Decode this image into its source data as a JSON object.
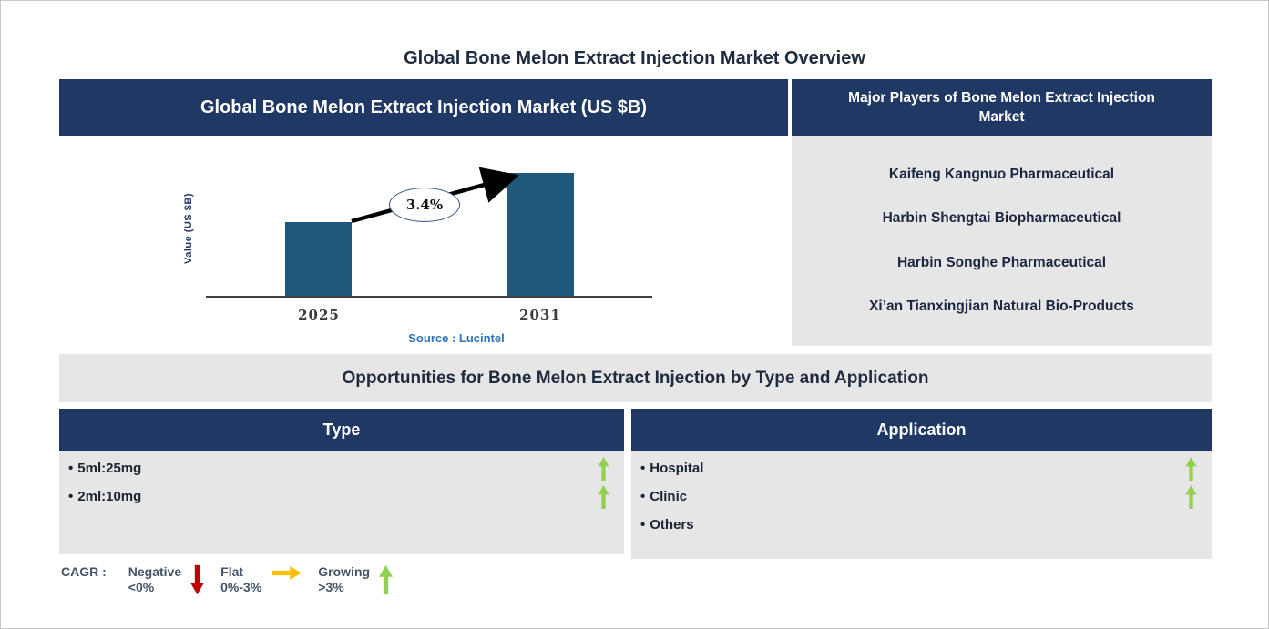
{
  "page": {
    "title": "Global Bone Melon Extract Injection Market Overview"
  },
  "chart_data": {
    "type": "bar",
    "title": "Global Bone Melon Extract Injection Market (US $B)",
    "categories": [
      "2025",
      "2031"
    ],
    "values": [
      0.6,
      1.0
    ],
    "value_note": "Y-axis has no tick labels; values are relative bar heights (2031 normalized to 1.0)",
    "ylabel": "Value (US $B)",
    "xlabel": "",
    "ylim": [
      0,
      1.1
    ],
    "grid": false,
    "legend": "none",
    "annotations": [
      {
        "label": "3.4%",
        "note": "CAGR shown in ellipse on growth arrow from 2025 bar to 2031 bar"
      }
    ],
    "source": "Source : Lucintel"
  },
  "players_panel": {
    "header": "Major Players of Bone Melon Extract Injection Market",
    "players": [
      "Kaifeng Kangnuo Pharmaceutical",
      "Harbin Shengtai Biopharmaceutical",
      "Harbin Songhe Pharmaceutical",
      "Xi’an Tianxingjian Natural Bio-Products"
    ]
  },
  "opportunities": {
    "banner": "Opportunities for Bone Melon Extract Injection by Type and Application",
    "type_column": {
      "header": "Type",
      "items": [
        {
          "label": "5ml:25mg",
          "trend": "growing"
        },
        {
          "label": "2ml:10mg",
          "trend": "growing"
        }
      ]
    },
    "application_column": {
      "header": "Application",
      "items": [
        {
          "label": "Hospital",
          "trend": "growing"
        },
        {
          "label": "Clinic",
          "trend": "growing"
        },
        {
          "label": "Others",
          "trend": "none"
        }
      ]
    }
  },
  "legend": {
    "label": "CAGR :",
    "entries": [
      {
        "name": "Negative",
        "range": "<0%",
        "arrow": "down",
        "color": "#C00000"
      },
      {
        "name": "Flat",
        "range": "0%-3%",
        "arrow": "right",
        "color": "#FFC000"
      },
      {
        "name": "Growing",
        "range": ">3%",
        "arrow": "up",
        "color": "#92D050"
      }
    ]
  },
  "icons": {
    "bullet": "•"
  },
  "colors": {
    "navy_header": "#1F3864",
    "panel_gray": "#E7E6E6",
    "bar_blue": "#20587C",
    "negative_red": "#C00000",
    "flat_yellow": "#FFC000",
    "growing_green": "#92D050",
    "source_blue": "#2E74B5"
  }
}
